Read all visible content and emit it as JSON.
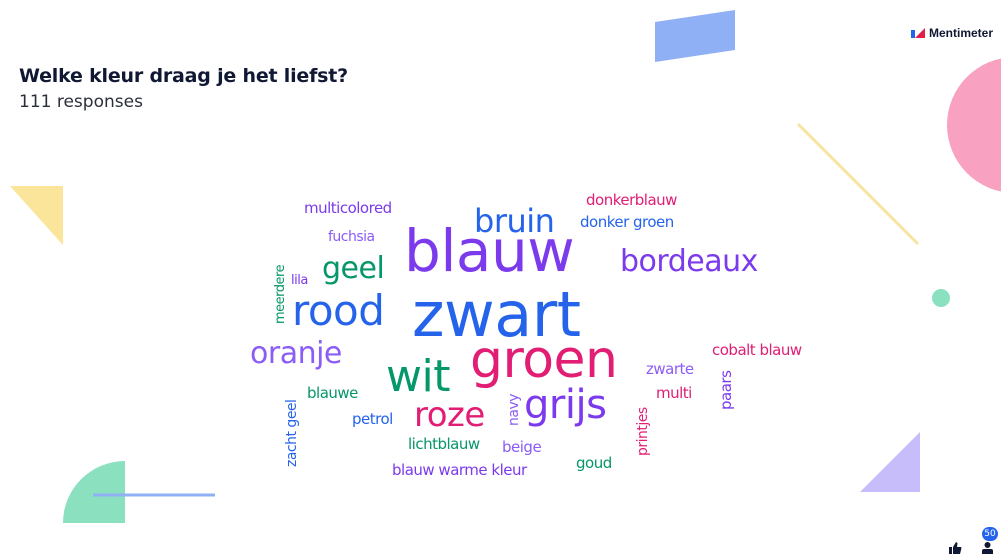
{
  "header": {
    "brand_name": "Mentimeter",
    "question": "Welke kleur draag je het liefst?",
    "responses": "111 responses"
  },
  "footer": {
    "participants_count": "50",
    "like_icon": "thumbs-up-icon",
    "participants_icon": "person-icon"
  },
  "words": {
    "zwart": "zwart",
    "blauw": "blauw",
    "groen": "groen",
    "wit": "wit",
    "rood": "rood",
    "grijs": "grijs",
    "roze": "roze",
    "bruin": "bruin",
    "bordeaux": "bordeaux",
    "geel": "geel",
    "oranje": "oranje",
    "multicolored": "multicolored",
    "fuchsia": "fuchsia",
    "lila": "lila",
    "meerdere": "meerdere",
    "donkerblauw": "donkerblauw",
    "donker_groen": "donker groen",
    "cobalt_blauw": "cobalt blauw",
    "zwarte": "zwarte",
    "multi": "multi",
    "paars": "paars",
    "blauwe": "blauwe",
    "zacht_geel": "zacht geel",
    "petrol": "petrol",
    "navy": "navy",
    "printjes": "printjes",
    "lichtblauw": "lichtblauw",
    "beige": "beige",
    "goud": "goud",
    "blauw_warme_kleur": "blauw warme kleur"
  },
  "colors": {
    "blue": "#2563eb",
    "purple": "#7c3aed",
    "light_purple": "#8b5cf6",
    "magenta": "#e11d74",
    "green": "#059669",
    "title": "#101834"
  }
}
